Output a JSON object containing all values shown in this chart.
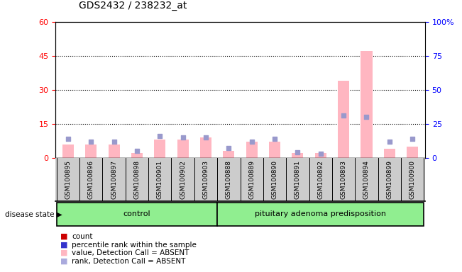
{
  "title": "GDS2432 / 238232_at",
  "samples": [
    "GSM100895",
    "GSM100896",
    "GSM100897",
    "GSM100898",
    "GSM100901",
    "GSM100902",
    "GSM100903",
    "GSM100888",
    "GSM100889",
    "GSM100890",
    "GSM100891",
    "GSM100892",
    "GSM100893",
    "GSM100894",
    "GSM100899",
    "GSM100900"
  ],
  "control_count": 7,
  "count_values": [
    6,
    6,
    6,
    2,
    8,
    8,
    9,
    3,
    7,
    7,
    2,
    2,
    34,
    47,
    4,
    5
  ],
  "rank_values": [
    14,
    12,
    12,
    5,
    16,
    15,
    15,
    7,
    12,
    14,
    4,
    3,
    31,
    30,
    12,
    14
  ],
  "bar_color": "#ffb6c1",
  "dot_color": "#9999cc",
  "plot_bg": "#ffffff",
  "tick_bg": "#cccccc",
  "left_ylim": [
    0,
    60
  ],
  "right_ylim": [
    0,
    100
  ],
  "left_yticks": [
    0,
    15,
    30,
    45,
    60
  ],
  "right_yticks": [
    0,
    25,
    50,
    75,
    100
  ],
  "right_yticklabels": [
    "0",
    "25",
    "50",
    "75",
    "100%"
  ],
  "dotted_lines": [
    15,
    30,
    45
  ],
  "control_label": "control",
  "pap_label": "pituitary adenoma predisposition",
  "group_box_color": "#90ee90",
  "group_label": "disease state",
  "legend_items": [
    {
      "color": "#cc0000",
      "label": "count"
    },
    {
      "color": "#3333cc",
      "label": "percentile rank within the sample"
    },
    {
      "color": "#ffb6c1",
      "label": "value, Detection Call = ABSENT"
    },
    {
      "color": "#aaaadd",
      "label": "rank, Detection Call = ABSENT"
    }
  ]
}
